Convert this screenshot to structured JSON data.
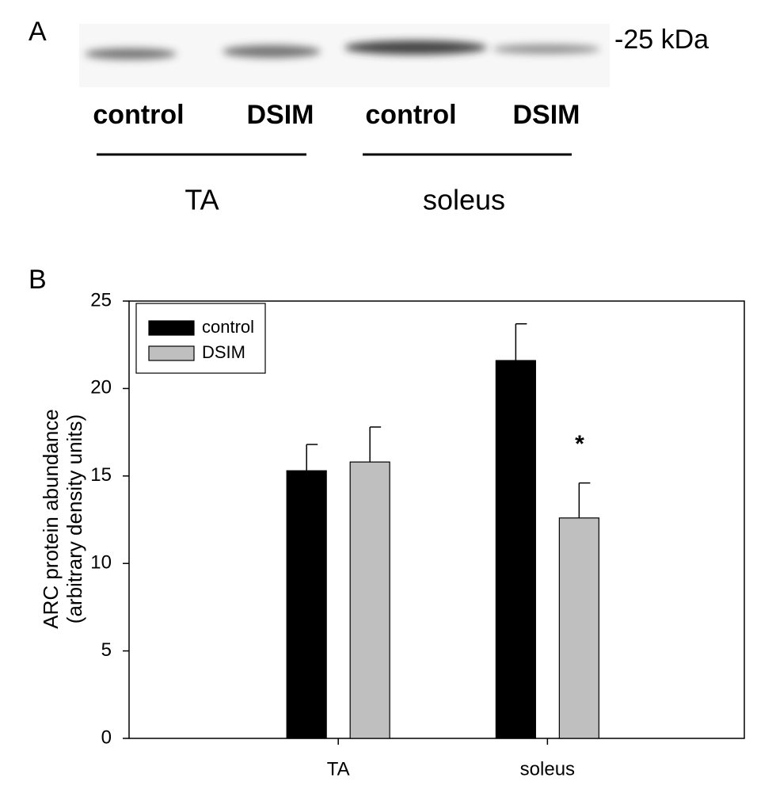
{
  "panel_a": {
    "label": "A",
    "marker": "-25 kDa",
    "lanes": [
      "control",
      "DSIM",
      "control",
      "DSIM"
    ],
    "groups": [
      "TA",
      "soleus"
    ]
  },
  "chart_data": {
    "type": "bar",
    "panel_label": "B",
    "y_label": [
      "ARC protein abundance",
      "(arbitrary density units)"
    ],
    "categories": [
      "TA",
      "soleus"
    ],
    "series": [
      {
        "name": "control",
        "color": "#000000",
        "values": [
          15.3,
          21.6
        ],
        "errors": [
          1.5,
          2.1
        ]
      },
      {
        "name": "DSIM",
        "color": "#bfbfbf",
        "values": [
          15.8,
          12.6
        ],
        "errors": [
          2.0,
          2.0
        ]
      }
    ],
    "ylim": [
      0,
      25
    ],
    "yticks": [
      0,
      5,
      10,
      15,
      20,
      25
    ],
    "legend": "upper-left",
    "annotation": "*"
  }
}
